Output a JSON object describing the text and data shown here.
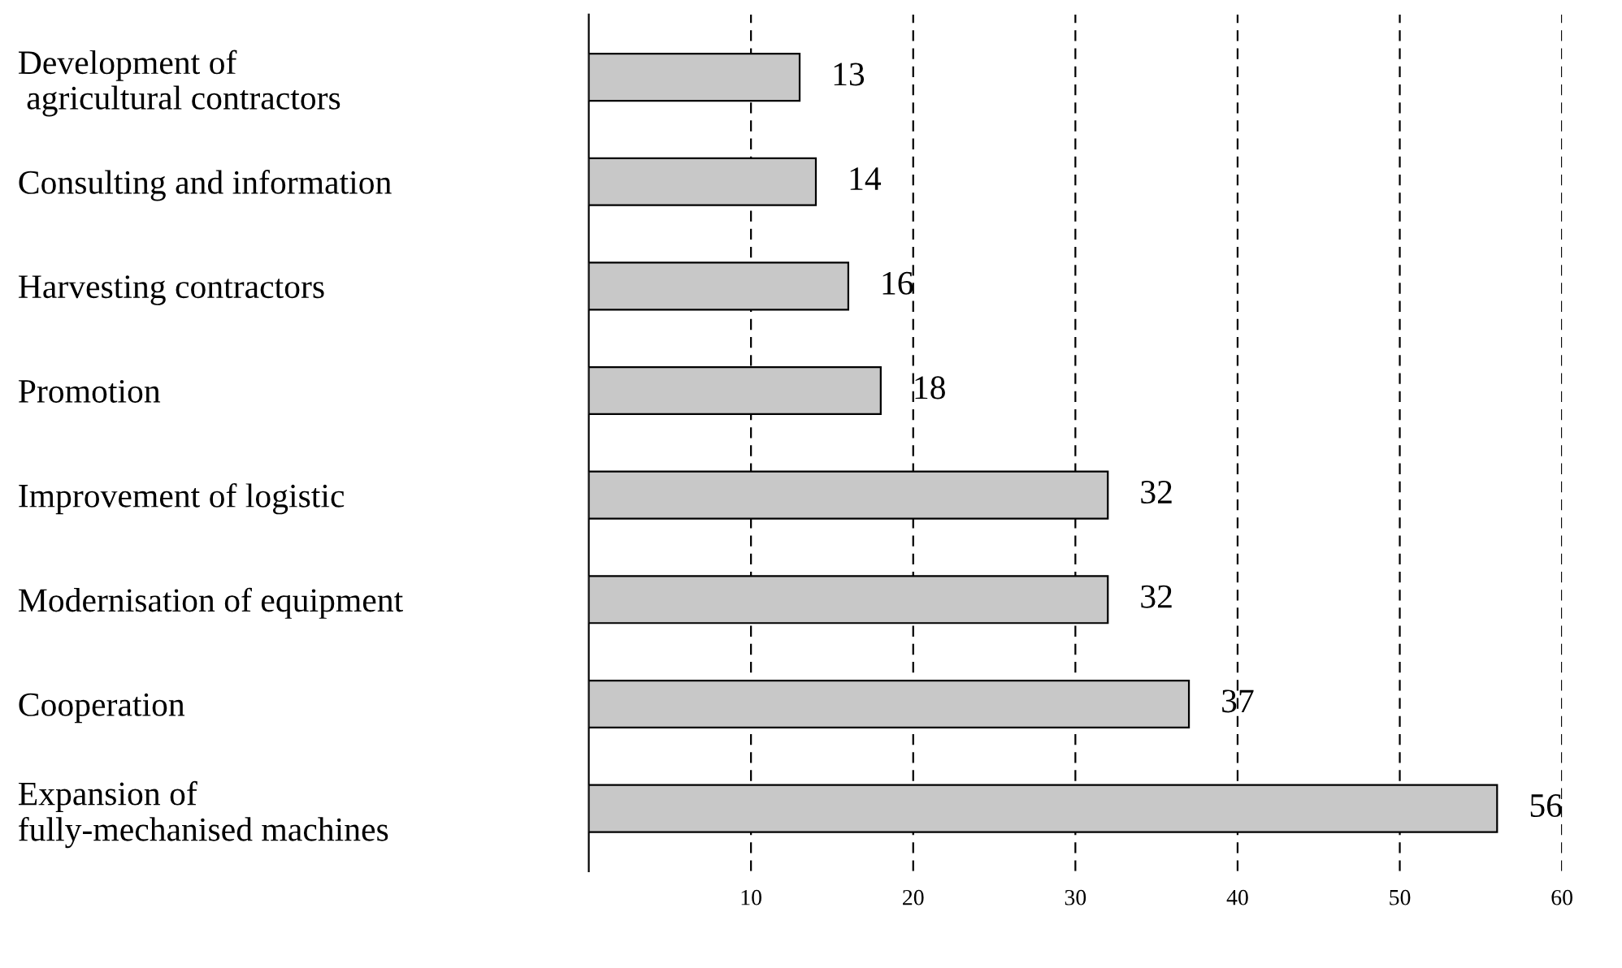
{
  "chart_data": {
    "type": "bar",
    "orientation": "horizontal",
    "categories": [
      "Development of\n agricultural contractors",
      "Consulting and information",
      "Harvesting contractors",
      "Promotion",
      "Improvement of logistic",
      "Modernisation of equipment",
      "Cooperation",
      "Expansion of\nfully-mechanised machines"
    ],
    "values": [
      13,
      14,
      16,
      18,
      32,
      32,
      37,
      56
    ],
    "color": "#c8c8c8",
    "xlim": [
      0,
      60
    ],
    "xticks": [
      10,
      20,
      30,
      40,
      50,
      60
    ],
    "grid": "x",
    "line_style": "dashed",
    "data_labels": true,
    "legend": false
  }
}
